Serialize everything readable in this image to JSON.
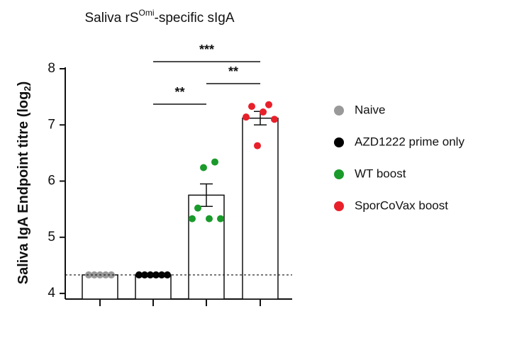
{
  "chart_data": {
    "type": "bar",
    "title_parts": [
      "Saliva rS",
      "Omi",
      "-specific sIgA"
    ],
    "y_label_parts": [
      "Saliva IgA Endpoint titre (log",
      "2",
      ")"
    ],
    "ylim": [
      3.9,
      8
    ],
    "yticks": [
      4,
      5,
      6,
      7,
      8
    ],
    "reference_line": 4.33,
    "series": [
      {
        "name": "Naive",
        "color": "#999999",
        "value": 4.33,
        "error": 0,
        "points": [
          4.33,
          4.33,
          4.33,
          4.33,
          4.33
        ]
      },
      {
        "name": "AZD1222 prime only",
        "color": "#000000",
        "value": 4.33,
        "error": 0,
        "points": [
          4.33,
          4.33,
          4.33,
          4.33,
          4.33,
          4.33
        ]
      },
      {
        "name": "WT boost",
        "color": "#1a9a2a",
        "value": 5.75,
        "error": 0.2,
        "points": [
          5.33,
          5.52,
          6.24,
          5.33,
          6.34,
          5.33
        ]
      },
      {
        "name": "SporCoVax boost",
        "color": "#e8202a",
        "value": 7.12,
        "error": 0.12,
        "points": [
          7.14,
          7.33,
          6.63,
          7.23,
          7.36,
          7.1
        ]
      }
    ],
    "significance": [
      "***",
      "**",
      "**"
    ]
  }
}
